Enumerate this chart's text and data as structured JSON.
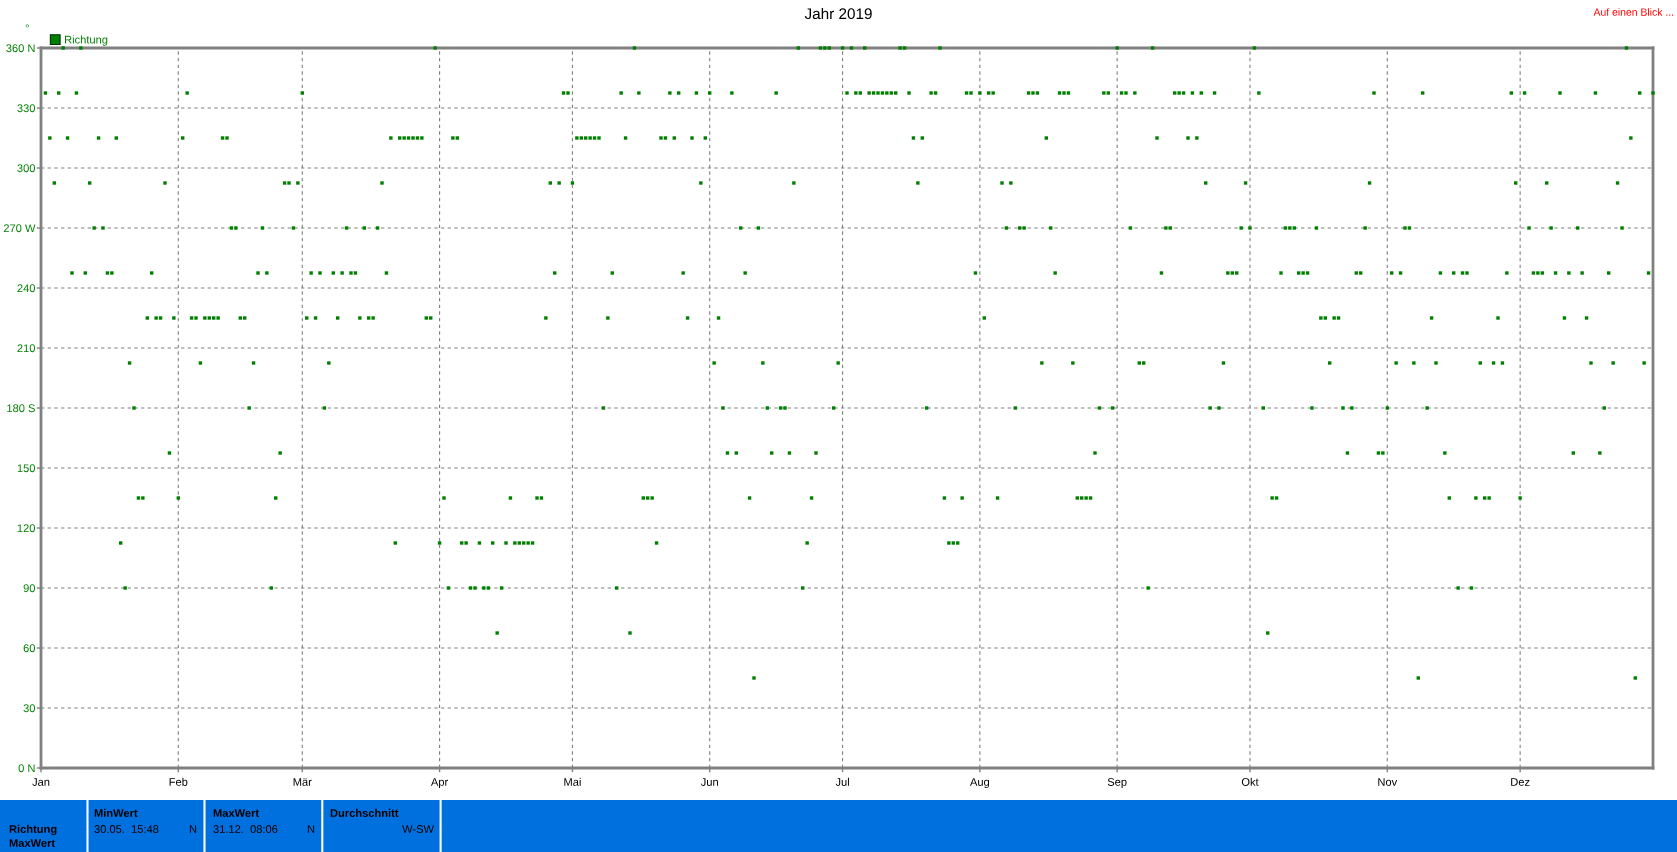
{
  "chart_data": {
    "type": "scatter",
    "title": "Jahr 2019",
    "ylabel": "°",
    "annotations": [
      "Auf einen Blick ...",
      "Richtung",
      "MaxWert",
      "MinWert",
      "30.05.  15:48",
      "N",
      "MaxWert",
      "31.12.  08:06",
      "N",
      "Durchschnitt",
      "W-SW"
    ],
    "x": [
      "2019-01-02",
      "2019-01-03",
      "2019-01-04",
      "2019-01-05",
      "2019-01-06",
      "2019-01-07",
      "2019-01-08",
      "2019-01-09",
      "2019-01-10",
      "2019-01-11",
      "2019-01-12",
      "2019-01-13",
      "2019-01-14",
      "2019-01-15",
      "2019-01-16",
      "2019-01-17",
      "2019-01-18",
      "2019-01-19",
      "2019-01-20",
      "2019-01-21",
      "2019-01-22",
      "2019-01-23",
      "2019-01-24",
      "2019-01-25",
      "2019-01-26",
      "2019-01-27",
      "2019-01-28",
      "2019-01-29",
      "2019-01-30",
      "2019-01-31",
      "2019-02-01",
      "2019-02-02",
      "2019-02-03",
      "2019-02-04",
      "2019-02-05",
      "2019-02-06",
      "2019-02-07",
      "2019-02-08",
      "2019-02-09",
      "2019-02-10",
      "2019-02-11",
      "2019-02-12",
      "2019-02-13",
      "2019-02-14",
      "2019-02-15",
      "2019-02-16",
      "2019-02-17",
      "2019-02-18",
      "2019-02-19",
      "2019-02-20",
      "2019-02-21",
      "2019-02-22",
      "2019-02-23",
      "2019-02-24",
      "2019-02-25",
      "2019-02-26",
      "2019-02-27",
      "2019-02-28",
      "2019-03-01",
      "2019-03-02",
      "2019-03-03",
      "2019-03-04",
      "2019-03-05",
      "2019-03-06",
      "2019-03-07",
      "2019-03-08",
      "2019-03-09",
      "2019-03-10",
      "2019-03-11",
      "2019-03-12",
      "2019-03-13",
      "2019-03-14",
      "2019-03-15",
      "2019-03-16",
      "2019-03-17",
      "2019-03-18",
      "2019-03-19",
      "2019-03-20",
      "2019-03-21",
      "2019-03-22",
      "2019-03-23",
      "2019-03-24",
      "2019-03-25",
      "2019-03-26",
      "2019-03-27",
      "2019-03-28",
      "2019-03-29",
      "2019-03-30",
      "2019-03-31",
      "2019-04-01",
      "2019-04-02",
      "2019-04-03",
      "2019-04-04",
      "2019-04-05",
      "2019-04-06",
      "2019-04-07",
      "2019-04-08",
      "2019-04-09",
      "2019-04-10",
      "2019-04-11",
      "2019-04-12",
      "2019-04-13",
      "2019-04-14",
      "2019-04-15",
      "2019-04-16",
      "2019-04-17",
      "2019-04-18",
      "2019-04-19",
      "2019-04-20",
      "2019-04-21",
      "2019-04-22",
      "2019-04-23",
      "2019-04-24",
      "2019-04-25",
      "2019-04-26",
      "2019-04-27",
      "2019-04-28",
      "2019-04-29",
      "2019-04-30",
      "2019-05-01",
      "2019-05-02",
      "2019-05-03",
      "2019-05-04",
      "2019-05-05",
      "2019-05-06",
      "2019-05-07",
      "2019-05-08",
      "2019-05-09",
      "2019-05-10",
      "2019-05-11",
      "2019-05-12",
      "2019-05-13",
      "2019-05-14",
      "2019-05-15",
      "2019-05-16",
      "2019-05-17",
      "2019-05-18",
      "2019-05-19",
      "2019-05-20",
      "2019-05-21",
      "2019-05-22",
      "2019-05-23",
      "2019-05-24",
      "2019-05-25",
      "2019-05-26",
      "2019-05-27",
      "2019-05-28",
      "2019-05-29",
      "2019-05-30",
      "2019-05-31",
      "2019-06-01",
      "2019-06-02",
      "2019-06-03",
      "2019-06-04",
      "2019-06-05",
      "2019-06-06",
      "2019-06-07",
      "2019-06-08",
      "2019-06-09",
      "2019-06-10",
      "2019-06-11",
      "2019-06-12",
      "2019-06-13",
      "2019-06-14",
      "2019-06-15",
      "2019-06-16",
      "2019-06-17",
      "2019-06-18",
      "2019-06-19",
      "2019-06-20",
      "2019-06-21",
      "2019-06-22",
      "2019-06-23",
      "2019-06-24",
      "2019-06-25",
      "2019-06-26",
      "2019-06-27",
      "2019-06-28",
      "2019-06-29",
      "2019-06-30",
      "2019-07-01",
      "2019-07-02",
      "2019-07-03",
      "2019-07-04",
      "2019-07-05",
      "2019-07-06",
      "2019-07-07",
      "2019-07-08",
      "2019-07-09",
      "2019-07-10",
      "2019-07-11",
      "2019-07-12",
      "2019-07-13",
      "2019-07-14",
      "2019-07-15",
      "2019-07-16",
      "2019-07-17",
      "2019-07-18",
      "2019-07-19",
      "2019-07-20",
      "2019-07-21",
      "2019-07-22",
      "2019-07-23",
      "2019-07-24",
      "2019-07-25",
      "2019-07-26",
      "2019-07-27",
      "2019-07-28",
      "2019-07-29",
      "2019-07-30",
      "2019-07-31",
      "2019-08-01",
      "2019-08-02",
      "2019-08-03",
      "2019-08-04",
      "2019-08-05",
      "2019-08-06",
      "2019-08-07",
      "2019-08-08",
      "2019-08-09",
      "2019-08-10",
      "2019-08-11",
      "2019-08-12",
      "2019-08-13",
      "2019-08-14",
      "2019-08-15",
      "2019-08-16",
      "2019-08-17",
      "2019-08-18",
      "2019-08-19",
      "2019-08-20",
      "2019-08-21",
      "2019-08-22",
      "2019-08-23",
      "2019-08-24",
      "2019-08-25",
      "2019-08-26",
      "2019-08-27",
      "2019-08-28",
      "2019-08-29",
      "2019-08-30",
      "2019-08-31",
      "2019-09-01",
      "2019-09-02",
      "2019-09-03",
      "2019-09-04",
      "2019-09-05",
      "2019-09-06",
      "2019-09-07",
      "2019-09-08",
      "2019-09-09",
      "2019-09-10",
      "2019-09-11",
      "2019-09-12",
      "2019-09-13",
      "2019-09-14",
      "2019-09-15",
      "2019-09-16",
      "2019-09-17",
      "2019-09-18",
      "2019-09-19",
      "2019-09-20",
      "2019-09-21",
      "2019-09-22",
      "2019-09-23",
      "2019-09-24",
      "2019-09-25",
      "2019-09-26",
      "2019-09-27",
      "2019-09-28",
      "2019-09-29",
      "2019-09-30",
      "2019-10-01",
      "2019-10-02",
      "2019-10-03",
      "2019-10-04",
      "2019-10-05",
      "2019-10-06",
      "2019-10-07",
      "2019-10-08",
      "2019-10-09",
      "2019-10-10",
      "2019-10-11",
      "2019-10-12",
      "2019-10-13",
      "2019-10-14",
      "2019-10-15",
      "2019-10-16",
      "2019-10-17",
      "2019-10-18",
      "2019-10-19",
      "2019-10-20",
      "2019-10-21",
      "2019-10-22",
      "2019-10-23",
      "2019-10-24",
      "2019-10-25",
      "2019-10-26",
      "2019-10-27",
      "2019-10-28",
      "2019-10-29",
      "2019-10-30",
      "2019-10-31",
      "2019-11-01",
      "2019-11-02",
      "2019-11-03",
      "2019-11-04",
      "2019-11-05",
      "2019-11-06",
      "2019-11-07",
      "2019-11-08",
      "2019-11-09",
      "2019-11-10",
      "2019-11-11",
      "2019-11-12",
      "2019-11-13",
      "2019-11-14",
      "2019-11-15",
      "2019-11-16",
      "2019-11-17",
      "2019-11-18",
      "2019-11-19",
      "2019-11-20",
      "2019-11-21",
      "2019-11-22",
      "2019-11-23",
      "2019-11-24",
      "2019-11-25",
      "2019-11-26",
      "2019-11-27",
      "2019-11-28",
      "2019-11-29",
      "2019-11-30",
      "2019-12-01",
      "2019-12-02",
      "2019-12-03",
      "2019-12-04",
      "2019-12-05",
      "2019-12-06",
      "2019-12-07",
      "2019-12-08",
      "2019-12-09",
      "2019-12-10",
      "2019-12-11",
      "2019-12-12",
      "2019-12-13",
      "2019-12-14",
      "2019-12-15",
      "2019-12-16",
      "2019-12-17",
      "2019-12-18",
      "2019-12-19",
      "2019-12-20",
      "2019-12-21",
      "2019-12-22",
      "2019-12-23",
      "2019-12-24",
      "2019-12-25",
      "2019-12-26",
      "2019-12-27",
      "2019-12-28",
      "2019-12-29",
      "2019-12-30",
      "2019-12-31"
    ],
    "series": [
      {
        "name": "Richtung",
        "color": "#008000",
        "values": [
          337.5,
          315,
          292.5,
          337.5,
          360,
          315,
          247.5,
          337.5,
          360,
          247.5,
          292.5,
          270,
          315,
          270,
          247.5,
          247.5,
          315,
          112.5,
          90,
          202.5,
          180,
          135,
          135,
          225,
          247.5,
          225,
          225,
          292.5,
          157.5,
          225,
          135,
          315,
          337.5,
          225,
          225,
          202.5,
          225,
          225,
          225,
          225,
          315,
          315,
          270,
          270,
          225,
          225,
          180,
          202.5,
          247.5,
          270,
          247.5,
          90,
          135,
          157.5,
          292.5,
          292.5,
          270,
          292.5,
          337.5,
          225,
          247.5,
          225,
          247.5,
          180,
          202.5,
          247.5,
          225,
          247.5,
          270,
          247.5,
          247.5,
          225,
          270,
          225,
          225,
          270,
          292.5,
          247.5,
          315,
          112.5,
          315,
          315,
          315,
          315,
          315,
          315,
          225,
          225,
          360,
          112.5,
          135,
          90,
          315,
          315,
          112.5,
          112.5,
          90,
          90,
          112.5,
          90,
          90,
          112.5,
          67.5,
          90,
          112.5,
          135,
          112.5,
          112.5,
          112.5,
          112.5,
          112.5,
          135,
          135,
          225,
          292.5,
          247.5,
          292.5,
          337.5,
          337.5,
          292.5,
          315,
          315,
          315,
          315,
          315,
          315,
          180,
          225,
          247.5,
          90,
          337.5,
          315,
          67.5,
          360,
          337.5,
          135,
          135,
          135,
          112.5,
          315,
          315,
          337.5,
          315,
          337.5,
          247.5,
          225,
          315,
          337.5,
          292.5,
          315,
          337.5,
          202.5,
          225,
          180,
          157.5,
          337.5,
          157.5,
          270,
          247.5,
          135,
          45,
          270,
          202.5,
          180,
          157.5,
          337.5,
          180,
          180,
          157.5,
          292.5,
          360,
          90,
          112.5,
          135,
          157.5,
          360,
          360,
          360,
          180,
          202.5,
          360,
          337.5,
          360,
          337.5,
          337.5,
          360,
          337.5,
          337.5,
          337.5,
          337.5,
          337.5,
          337.5,
          337.5,
          360,
          360,
          337.5,
          315,
          292.5,
          315,
          180,
          337.5,
          337.5,
          360,
          135,
          112.5,
          112.5,
          112.5,
          135,
          337.5,
          337.5,
          247.5,
          337.5,
          225,
          337.5,
          337.5,
          135,
          292.5,
          270,
          292.5,
          180,
          270,
          270,
          337.5,
          337.5,
          337.5,
          202.5,
          315,
          270,
          247.5,
          337.5,
          337.5,
          337.5,
          202.5,
          135,
          135,
          135,
          135,
          157.5,
          180,
          337.5,
          337.5,
          180,
          360,
          337.5,
          337.5,
          270,
          337.5,
          202.5,
          202.5,
          90,
          360,
          315,
          247.5,
          270,
          270,
          337.5,
          337.5,
          337.5,
          315,
          337.5,
          315,
          337.5,
          292.5,
          180,
          337.5,
          180,
          202.5,
          247.5,
          247.5,
          247.5,
          270,
          292.5,
          270,
          360,
          337.5,
          180,
          67.5,
          135,
          135,
          247.5,
          270,
          270,
          270,
          247.5,
          247.5,
          247.5,
          180,
          270,
          225,
          225,
          202.5,
          225,
          225,
          180,
          157.5,
          180,
          247.5,
          247.5,
          270,
          292.5,
          337.5,
          157.5,
          157.5,
          180,
          247.5,
          202.5,
          247.5,
          270,
          270,
          202.5,
          45,
          337.5,
          180,
          225,
          202.5,
          247.5,
          157.5,
          135,
          247.5,
          90,
          247.5,
          247.5,
          90,
          135,
          202.5,
          135,
          135,
          202.5,
          225,
          202.5,
          247.5,
          337.5,
          292.5,
          135,
          337.5,
          270,
          247.5,
          247.5,
          247.5,
          292.5,
          270,
          247.5,
          337.5,
          225,
          247.5,
          157.5,
          270,
          247.5,
          225,
          202.5,
          337.5,
          157.5,
          180,
          247.5,
          202.5,
          292.5,
          270,
          360,
          315,
          45,
          337.5,
          202.5,
          247.5,
          337.5
        ]
      }
    ],
    "xlim": [
      "2019-01-01",
      "2019-12-31"
    ],
    "xticks": [
      {
        "value": "2019-01-01",
        "label": "Jan"
      },
      {
        "value": "2019-02-01",
        "label": "Feb"
      },
      {
        "value": "2019-03-01",
        "label": "Mär"
      },
      {
        "value": "2019-04-01",
        "label": "Apr"
      },
      {
        "value": "2019-05-01",
        "label": "Mai"
      },
      {
        "value": "2019-06-01",
        "label": "Jun"
      },
      {
        "value": "2019-07-01",
        "label": "Jul"
      },
      {
        "value": "2019-08-01",
        "label": "Aug"
      },
      {
        "value": "2019-09-01",
        "label": "Sep"
      },
      {
        "value": "2019-10-01",
        "label": "Okt"
      },
      {
        "value": "2019-11-01",
        "label": "Nov"
      },
      {
        "value": "2019-12-01",
        "label": "Dez"
      }
    ],
    "ylim": [
      0,
      360
    ],
    "yticks": [
      {
        "value": 0,
        "label": "0 N"
      },
      30,
      60,
      90,
      120,
      150,
      {
        "value": 180,
        "label": "180 S"
      },
      210,
      240,
      {
        "value": 270,
        "label": "270 W"
      },
      300,
      330,
      {
        "value": 360,
        "label": "360 N"
      }
    ],
    "grid": true,
    "legend": "top left",
    "marker": "square"
  }
}
